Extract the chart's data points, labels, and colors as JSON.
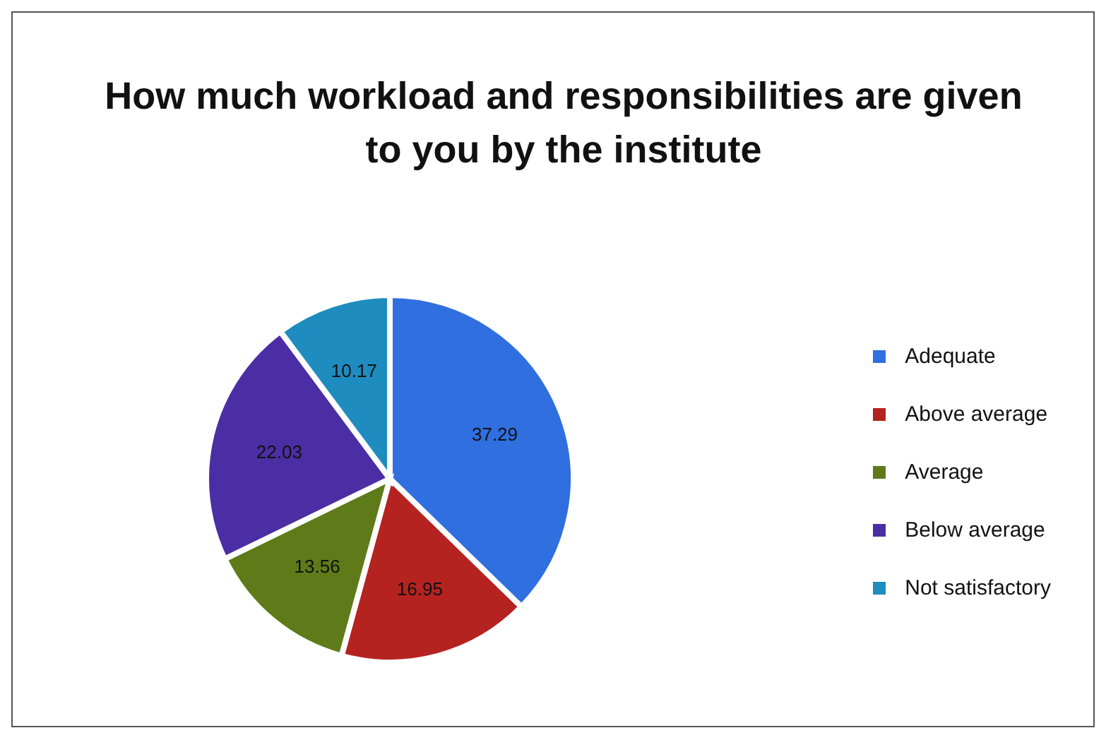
{
  "chart_data": {
    "type": "pie",
    "title": "How much workload and responsibilities are given to you by the institute",
    "categories": [
      "Adequate",
      "Above average",
      "Average",
      "Below average",
      "Not satisfactory"
    ],
    "values": [
      37.29,
      16.95,
      13.56,
      22.03,
      10.17
    ],
    "colors": [
      "#2f6fe0",
      "#b52320",
      "#5f7a18",
      "#4b2ea3",
      "#1f8cc0"
    ],
    "data_labels": true,
    "legend": "right"
  }
}
